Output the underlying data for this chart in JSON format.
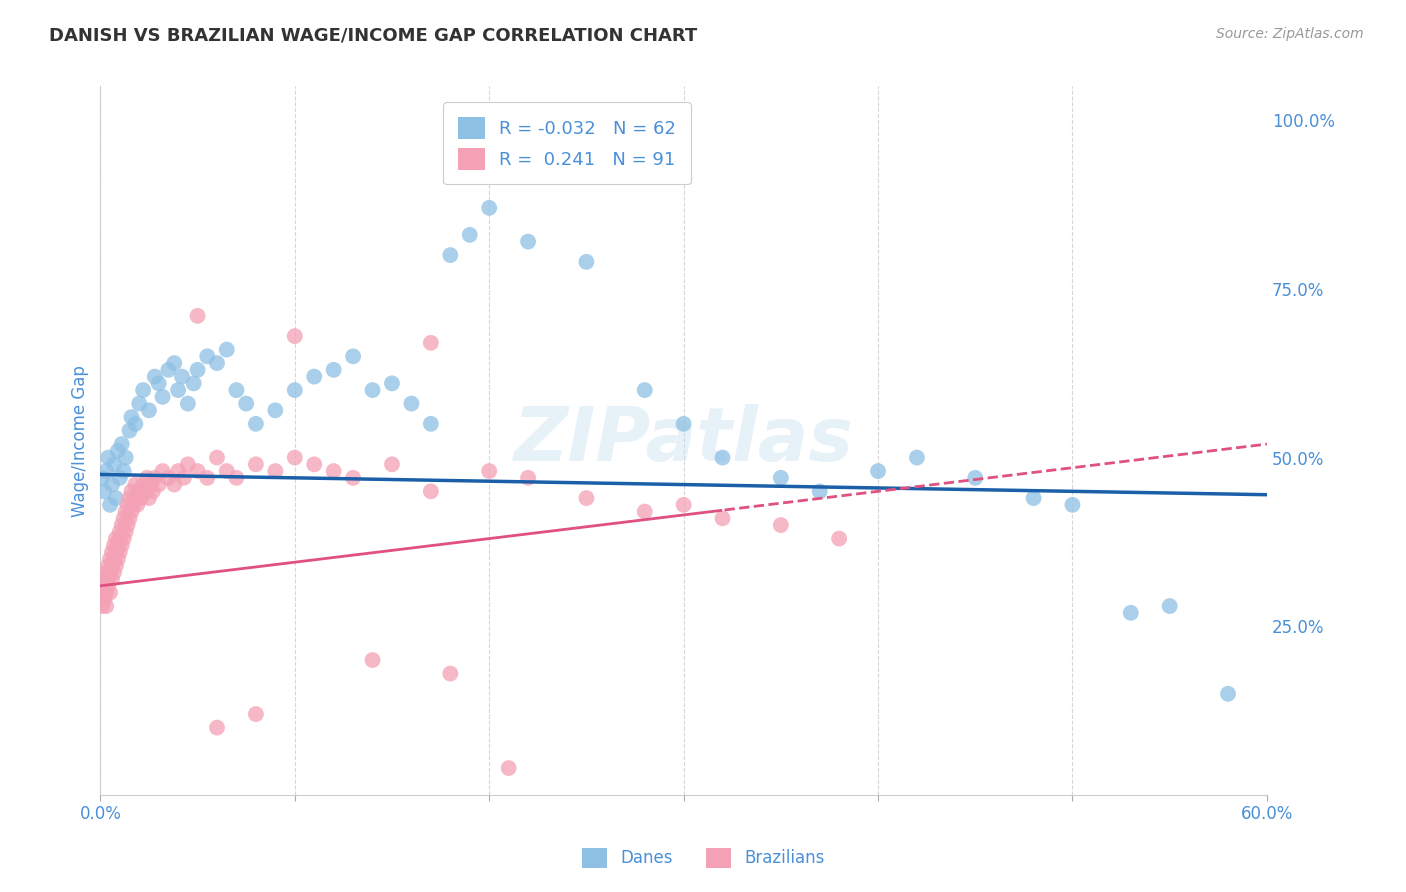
{
  "title": "DANISH VS BRAZILIAN WAGE/INCOME GAP CORRELATION CHART",
  "source": "Source: ZipAtlas.com",
  "ylabel": "Wage/Income Gap",
  "right_yticks": [
    "100.0%",
    "75.0%",
    "50.0%",
    "25.0%"
  ],
  "right_ytick_vals": [
    1.0,
    0.75,
    0.5,
    0.25
  ],
  "xlim": [
    0.0,
    0.6
  ],
  "ylim": [
    0.0,
    1.05
  ],
  "danes_color": "#8ec0e4",
  "brazilians_color": "#f4a0b5",
  "danes_R": -0.032,
  "danes_N": 62,
  "brazilians_R": 0.241,
  "brazilians_N": 91,
  "danes_scatter_x": [
    0.001,
    0.002,
    0.003,
    0.004,
    0.005,
    0.006,
    0.007,
    0.008,
    0.009,
    0.01,
    0.011,
    0.012,
    0.013,
    0.015,
    0.016,
    0.018,
    0.02,
    0.022,
    0.025,
    0.028,
    0.03,
    0.032,
    0.035,
    0.038,
    0.04,
    0.042,
    0.045,
    0.048,
    0.05,
    0.055,
    0.06,
    0.065,
    0.07,
    0.075,
    0.08,
    0.09,
    0.1,
    0.11,
    0.12,
    0.13,
    0.14,
    0.15,
    0.16,
    0.17,
    0.18,
    0.19,
    0.2,
    0.22,
    0.25,
    0.28,
    0.3,
    0.32,
    0.35,
    0.37,
    0.4,
    0.42,
    0.45,
    0.48,
    0.5,
    0.53,
    0.55,
    0.58
  ],
  "danes_scatter_y": [
    0.47,
    0.45,
    0.48,
    0.5,
    0.43,
    0.46,
    0.49,
    0.44,
    0.51,
    0.47,
    0.52,
    0.48,
    0.5,
    0.54,
    0.56,
    0.55,
    0.58,
    0.6,
    0.57,
    0.62,
    0.61,
    0.59,
    0.63,
    0.64,
    0.6,
    0.62,
    0.58,
    0.61,
    0.63,
    0.65,
    0.64,
    0.66,
    0.6,
    0.58,
    0.55,
    0.57,
    0.6,
    0.62,
    0.63,
    0.65,
    0.6,
    0.61,
    0.58,
    0.55,
    0.8,
    0.83,
    0.87,
    0.82,
    0.79,
    0.6,
    0.55,
    0.5,
    0.47,
    0.45,
    0.48,
    0.5,
    0.47,
    0.44,
    0.43,
    0.27,
    0.28,
    0.15
  ],
  "brazilians_scatter_x": [
    0.001,
    0.001,
    0.001,
    0.002,
    0.002,
    0.002,
    0.003,
    0.003,
    0.003,
    0.003,
    0.004,
    0.004,
    0.004,
    0.005,
    0.005,
    0.005,
    0.006,
    0.006,
    0.006,
    0.007,
    0.007,
    0.007,
    0.008,
    0.008,
    0.008,
    0.009,
    0.009,
    0.01,
    0.01,
    0.01,
    0.011,
    0.011,
    0.012,
    0.012,
    0.013,
    0.013,
    0.014,
    0.014,
    0.015,
    0.015,
    0.016,
    0.016,
    0.017,
    0.018,
    0.018,
    0.019,
    0.02,
    0.021,
    0.022,
    0.023,
    0.024,
    0.025,
    0.026,
    0.027,
    0.028,
    0.03,
    0.032,
    0.035,
    0.038,
    0.04,
    0.043,
    0.045,
    0.05,
    0.055,
    0.06,
    0.065,
    0.07,
    0.08,
    0.09,
    0.1,
    0.11,
    0.12,
    0.13,
    0.15,
    0.17,
    0.2,
    0.22,
    0.25,
    0.28,
    0.3,
    0.32,
    0.35,
    0.38,
    0.05,
    0.1,
    0.17,
    0.21,
    0.14,
    0.18,
    0.06,
    0.08
  ],
  "brazilians_scatter_y": [
    0.3,
    0.31,
    0.28,
    0.32,
    0.29,
    0.3,
    0.31,
    0.33,
    0.3,
    0.28,
    0.32,
    0.34,
    0.31,
    0.33,
    0.35,
    0.3,
    0.34,
    0.36,
    0.32,
    0.35,
    0.37,
    0.33,
    0.36,
    0.38,
    0.34,
    0.37,
    0.35,
    0.38,
    0.36,
    0.39,
    0.37,
    0.4,
    0.38,
    0.41,
    0.39,
    0.42,
    0.4,
    0.43,
    0.41,
    0.44,
    0.42,
    0.45,
    0.43,
    0.44,
    0.46,
    0.43,
    0.45,
    0.44,
    0.46,
    0.45,
    0.47,
    0.44,
    0.46,
    0.45,
    0.47,
    0.46,
    0.48,
    0.47,
    0.46,
    0.48,
    0.47,
    0.49,
    0.48,
    0.47,
    0.5,
    0.48,
    0.47,
    0.49,
    0.48,
    0.5,
    0.49,
    0.48,
    0.47,
    0.49,
    0.45,
    0.48,
    0.47,
    0.44,
    0.42,
    0.43,
    0.41,
    0.4,
    0.38,
    0.71,
    0.68,
    0.67,
    0.04,
    0.2,
    0.18,
    0.1,
    0.12
  ],
  "watermark": "ZIPatlas",
  "background_color": "#ffffff",
  "grid_color": "#cccccc",
  "title_color": "#333333",
  "axis_label_color": "#4a90d9",
  "legend_label_color": "#4a90d9"
}
